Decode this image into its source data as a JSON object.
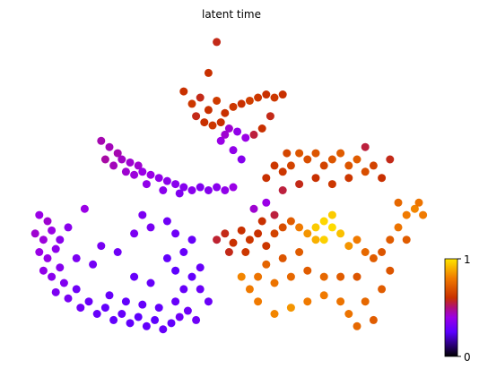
{
  "chart_data": {
    "type": "scatter",
    "title": "latent time",
    "xlim": [
      0,
      100
    ],
    "ylim": [
      0,
      100
    ],
    "clim": [
      0,
      1
    ],
    "cticks": [
      0,
      1
    ],
    "colormap": [
      [
        0,
        "#000000"
      ],
      [
        0.25,
        "#5a00ff"
      ],
      [
        0.4,
        "#9a00e6"
      ],
      [
        0.5,
        "#b0107a"
      ],
      [
        0.6,
        "#c83000"
      ],
      [
        0.8,
        "#f07a00"
      ],
      [
        1,
        "#ffe600"
      ]
    ],
    "series": [
      {
        "x": [
          38,
          40,
          42,
          44,
          46,
          48,
          50,
          52,
          54,
          56,
          58,
          60,
          62,
          41,
          43,
          45,
          47,
          49,
          51,
          53,
          55,
          57,
          59,
          44,
          46,
          47,
          50,
          52,
          48,
          18,
          20,
          22,
          19,
          21,
          23,
          25,
          27,
          24,
          26,
          28,
          30,
          32,
          34,
          36,
          38,
          40,
          42,
          44,
          46,
          48,
          50,
          29,
          33,
          37,
          3,
          5,
          2,
          4,
          6,
          3,
          5,
          7,
          8,
          4,
          6,
          8,
          9,
          7,
          10,
          12,
          13,
          15,
          17,
          19,
          21,
          23,
          25,
          27,
          29,
          31,
          33,
          35,
          37,
          39,
          41,
          20,
          24,
          28,
          32,
          36,
          38,
          40,
          42,
          36,
          34,
          38,
          40,
          36,
          34,
          30,
          28,
          26,
          16,
          12,
          18,
          10,
          14,
          22,
          26,
          30,
          44,
          42,
          46,
          48,
          50,
          52,
          54,
          56,
          58,
          49,
          53,
          57,
          55,
          58,
          60,
          60,
          62,
          64,
          66,
          68,
          70,
          72,
          74,
          72,
          76,
          74,
          70,
          78,
          80,
          82,
          84,
          86,
          88,
          90,
          92,
          94,
          96,
          95,
          90,
          92,
          88,
          86,
          82,
          78,
          84,
          80,
          76,
          72,
          68,
          64,
          60,
          56,
          54,
          52,
          56,
          60,
          64,
          68,
          72,
          76,
          80,
          62,
          66,
          58,
          58,
          60,
          62,
          64,
          63,
          66,
          68,
          70,
          72,
          74,
          76,
          78,
          80,
          82,
          84,
          86,
          70,
          74,
          66,
          62,
          78,
          82,
          88
        ],
        "y": [
          82,
          78,
          80,
          76,
          79,
          75,
          77,
          78,
          79,
          80,
          81,
          80,
          81,
          74,
          72,
          71,
          72,
          70,
          69,
          67,
          68,
          70,
          74,
          88,
          98,
          66,
          63,
          60,
          68,
          66,
          64,
          62,
          60,
          58,
          60,
          59,
          58,
          56,
          55,
          56,
          55,
          54,
          53,
          52,
          51,
          50,
          51,
          50,
          51,
          50,
          51,
          52,
          50,
          49,
          42,
          40,
          36,
          34,
          37,
          30,
          28,
          31,
          34,
          24,
          22,
          25,
          20,
          17,
          15,
          18,
          12,
          14,
          10,
          12,
          8,
          10,
          7,
          9,
          6,
          8,
          5,
          7,
          9,
          11,
          8,
          16,
          14,
          13,
          12,
          14,
          18,
          22,
          25,
          24,
          28,
          30,
          34,
          36,
          40,
          38,
          42,
          36,
          26,
          28,
          32,
          38,
          44,
          30,
          22,
          20,
          14,
          18,
          34,
          36,
          33,
          37,
          34,
          36,
          32,
          30,
          30,
          40,
          44,
          46,
          42,
          36,
          38,
          40,
          38,
          36,
          38,
          40,
          38,
          34,
          36,
          42,
          34,
          32,
          34,
          30,
          28,
          30,
          34,
          38,
          42,
          44,
          42,
          46,
          46,
          34,
          24,
          18,
          14,
          10,
          8,
          6,
          14,
          16,
          14,
          12,
          10,
          14,
          18,
          22,
          22,
          20,
          22,
          24,
          22,
          22,
          22,
          28,
          30,
          26,
          54,
          58,
          56,
          58,
          62,
          62,
          60,
          62,
          58,
          60,
          62,
          58,
          60,
          56,
          58,
          54,
          54,
          52,
          52,
          50,
          54,
          64,
          60
        ],
        "values": [
          0.6,
          0.62,
          0.58,
          0.6,
          0.63,
          0.6,
          0.62,
          0.6,
          0.64,
          0.62,
          0.6,
          0.62,
          0.6,
          0.58,
          0.6,
          0.62,
          0.6,
          0.42,
          0.38,
          0.4,
          0.55,
          0.6,
          0.58,
          0.6,
          0.58,
          0.4,
          0.38,
          0.35,
          0.42,
          0.45,
          0.44,
          0.45,
          0.46,
          0.44,
          0.43,
          0.42,
          0.42,
          0.42,
          0.41,
          0.4,
          0.4,
          0.38,
          0.37,
          0.36,
          0.35,
          0.36,
          0.34,
          0.35,
          0.36,
          0.38,
          0.4,
          0.38,
          0.36,
          0.34,
          0.4,
          0.42,
          0.42,
          0.41,
          0.4,
          0.4,
          0.39,
          0.37,
          0.36,
          0.38,
          0.36,
          0.35,
          0.34,
          0.33,
          0.32,
          0.3,
          0.3,
          0.29,
          0.28,
          0.27,
          0.27,
          0.28,
          0.27,
          0.26,
          0.27,
          0.26,
          0.28,
          0.27,
          0.3,
          0.3,
          0.3,
          0.28,
          0.27,
          0.28,
          0.27,
          0.28,
          0.28,
          0.27,
          0.28,
          0.26,
          0.27,
          0.28,
          0.28,
          0.3,
          0.3,
          0.32,
          0.33,
          0.33,
          0.31,
          0.33,
          0.32,
          0.36,
          0.4,
          0.3,
          0.28,
          0.28,
          0.29,
          0.29,
          0.56,
          0.58,
          0.6,
          0.6,
          0.62,
          0.6,
          0.62,
          0.58,
          0.62,
          0.6,
          0.42,
          0.4,
          0.55,
          0.65,
          0.68,
          0.72,
          0.8,
          0.85,
          0.95,
          0.97,
          0.98,
          0.96,
          0.93,
          0.95,
          0.9,
          0.85,
          0.8,
          0.75,
          0.72,
          0.7,
          0.72,
          0.78,
          0.8,
          0.82,
          0.8,
          0.78,
          0.75,
          0.72,
          0.7,
          0.72,
          0.75,
          0.78,
          0.72,
          0.75,
          0.78,
          0.8,
          0.8,
          0.85,
          0.82,
          0.8,
          0.8,
          0.82,
          0.78,
          0.78,
          0.75,
          0.72,
          0.75,
          0.72,
          0.7,
          0.7,
          0.72,
          0.74,
          0.6,
          0.62,
          0.62,
          0.65,
          0.66,
          0.7,
          0.68,
          0.7,
          0.65,
          0.7,
          0.72,
          0.7,
          0.72,
          0.68,
          0.65,
          0.6,
          0.6,
          0.62,
          0.58,
          0.55,
          0.62,
          0.55,
          0.58
        ]
      }
    ]
  }
}
